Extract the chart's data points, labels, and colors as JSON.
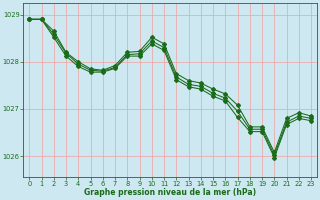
{
  "xlabel": "Graphe pression niveau de la mer (hPa)",
  "bg_color": "#cde8f0",
  "line_color": "#1a6b1a",
  "grid_color_h": "#f0a0a0",
  "grid_color_v": "#f0a0a0",
  "ylim": [
    1025.55,
    1029.25
  ],
  "xlim": [
    -0.5,
    23.5
  ],
  "yticks": [
    1026,
    1027,
    1028,
    1029
  ],
  "xticks": [
    0,
    1,
    2,
    3,
    4,
    5,
    6,
    7,
    8,
    9,
    10,
    11,
    12,
    13,
    14,
    15,
    16,
    17,
    18,
    19,
    20,
    21,
    22,
    23
  ],
  "line1": [
    1028.9,
    1028.9,
    1028.65,
    1028.2,
    1028.0,
    1027.85,
    1027.82,
    1027.92,
    1028.2,
    1028.22,
    1028.52,
    1028.38,
    1027.75,
    1027.6,
    1027.55,
    1027.42,
    1027.32,
    1027.08,
    1026.62,
    1026.62,
    1026.08,
    1026.8,
    1026.92,
    1026.85
  ],
  "line2": [
    1028.9,
    1028.9,
    1028.52,
    1028.12,
    1027.9,
    1027.78,
    1027.78,
    1027.86,
    1028.12,
    1028.12,
    1028.38,
    1028.24,
    1027.62,
    1027.47,
    1027.42,
    1027.27,
    1027.17,
    1026.82,
    1026.52,
    1026.52,
    1025.97,
    1026.67,
    1026.8,
    1026.75
  ],
  "line3_x": [
    0,
    1,
    2,
    3,
    4,
    5,
    6,
    7,
    8,
    9,
    10,
    11,
    12,
    13,
    14,
    15,
    16,
    17,
    18,
    19,
    20,
    21,
    22,
    23
  ],
  "line3": [
    1028.9,
    1028.9,
    1028.58,
    1028.18,
    1027.95,
    1027.82,
    1027.8,
    1027.88,
    1028.15,
    1028.17,
    1028.44,
    1028.3,
    1027.68,
    1027.52,
    1027.48,
    1027.33,
    1027.23,
    1026.95,
    1026.57,
    1026.57,
    1026.02,
    1026.72,
    1026.85,
    1026.8
  ],
  "marker": "D",
  "markersize": 2.0,
  "linewidth": 0.75,
  "xlabel_fontsize": 5.5,
  "tick_fontsize": 4.8
}
